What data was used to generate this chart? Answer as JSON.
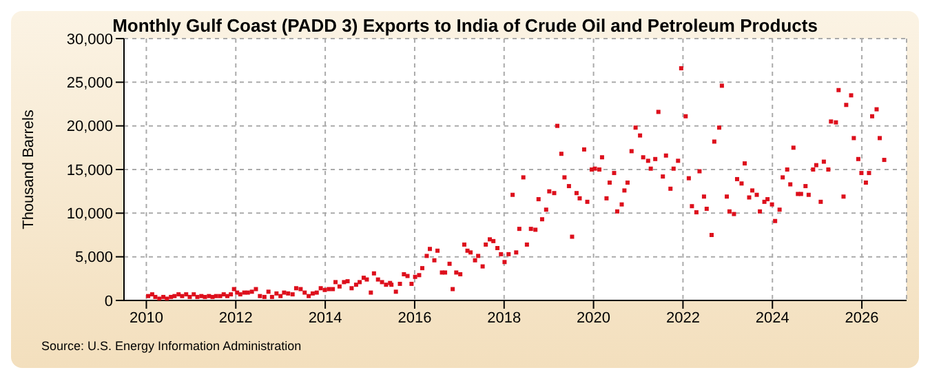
{
  "chart_data": {
    "type": "scatter",
    "title": "Monthly Gulf Coast (PADD 3) Exports to India of Crude Oil and Petroleum Products",
    "ylabel": "Thousand Barrels",
    "annotations": [
      "Source: U.S. Energy Information Administration"
    ],
    "marker": "square",
    "grid": true,
    "xlim": [
      2009.5,
      2027
    ],
    "xticks": [
      2010,
      2012,
      2014,
      2016,
      2018,
      2020,
      2022,
      2024,
      2026
    ],
    "ylim": [
      0,
      30000
    ],
    "yticks": [
      0,
      {
        "value": 5000,
        "label": "5,000"
      },
      {
        "value": 10000,
        "label": "10,000"
      },
      {
        "value": 15000,
        "label": "15,000"
      },
      {
        "value": 20000,
        "label": "20,000"
      },
      {
        "value": 25000,
        "label": "25,000"
      },
      {
        "value": 30000,
        "label": "30,000"
      }
    ],
    "series": [
      {
        "color": "#dd0f1c",
        "x": [
          2010.04,
          2010.13,
          2010.2,
          2010.29,
          2010.38,
          2010.46,
          2010.55,
          2010.63,
          2010.72,
          2010.8,
          2010.89,
          2010.97,
          2011.06,
          2011.14,
          2011.23,
          2011.31,
          2011.4,
          2011.48,
          2011.56,
          2011.65,
          2011.73,
          2011.81,
          2011.89,
          2011.96,
          2012.03,
          2012.1,
          2012.19,
          2012.27,
          2012.36,
          2012.45,
          2012.54,
          2012.64,
          2012.73,
          2012.81,
          2012.91,
          2013,
          2013.08,
          2013.17,
          2013.27,
          2013.35,
          2013.45,
          2013.54,
          2013.63,
          2013.72,
          2013.81,
          2013.9,
          2013.99,
          2014.08,
          2014.17,
          2014.23,
          2014.32,
          2014.42,
          2014.5,
          2014.59,
          2014.69,
          2014.77,
          2014.86,
          2014.93,
          2015.02,
          2015.09,
          2015.18,
          2015.27,
          2015.36,
          2015.45,
          2015.48,
          2015.58,
          2015.67,
          2015.76,
          2015.84,
          2015.93,
          2016.01,
          2016.1,
          2016.17,
          2016.27,
          2016.34,
          2016.44,
          2016.51,
          2016.61,
          2016.68,
          2016.78,
          2016.85,
          2016.93,
          2017.02,
          2017.11,
          2017.18,
          2017.25,
          2017.35,
          2017.42,
          2017.52,
          2017.59,
          2017.68,
          2017.76,
          2017.85,
          2017.93,
          2018.01,
          2018.1,
          2018.19,
          2018.27,
          2018.34,
          2018.43,
          2018.51,
          2018.6,
          2018.7,
          2018.77,
          2018.85,
          2018.94,
          2019.01,
          2019.12,
          2019.19,
          2019.28,
          2019.35,
          2019.45,
          2019.52,
          2019.62,
          2019.69,
          2019.79,
          2019.86,
          2019.96,
          2020.03,
          2020.13,
          2020.19,
          2020.29,
          2020.36,
          2020.46,
          2020.53,
          2020.63,
          2020.69,
          2020.76,
          2020.85,
          2020.94,
          2021.04,
          2021.11,
          2021.22,
          2021.28,
          2021.38,
          2021.45,
          2021.55,
          2021.62,
          2021.72,
          2021.79,
          2021.89,
          2021.96,
          2022.06,
          2022.13,
          2022.2,
          2022.3,
          2022.37,
          2022.47,
          2022.53,
          2022.64,
          2022.7,
          2022.81,
          2022.87,
          2022.98,
          2023.04,
          2023.14,
          2023.21,
          2023.31,
          2023.38,
          2023.48,
          2023.55,
          2023.65,
          2023.72,
          2023.82,
          2023.89,
          2023.99,
          2024.06,
          2024.16,
          2024.23,
          2024.33,
          2024.4,
          2024.47,
          2024.57,
          2024.64,
          2024.74,
          2024.81,
          2024.91,
          2024.98,
          2025.08,
          2025.15,
          2025.25,
          2025.31,
          2025.42,
          2025.48,
          2025.59,
          2025.65,
          2025.76,
          2025.82,
          2025.92,
          2025.99,
          2026.09,
          2026.16,
          2026.23,
          2026.33,
          2026.4,
          2026.5
        ],
        "values": [
          500,
          700,
          400,
          200,
          400,
          200,
          400,
          500,
          700,
          500,
          700,
          400,
          700,
          400,
          500,
          400,
          500,
          400,
          500,
          500,
          700,
          500,
          700,
          1300,
          900,
          700,
          900,
          900,
          1000,
          1300,
          500,
          400,
          1000,
          400,
          800,
          500,
          900,
          800,
          700,
          1400,
          1300,
          900,
          500,
          800,
          900,
          1400,
          1200,
          1300,
          1300,
          2100,
          1600,
          2100,
          2200,
          1400,
          1800,
          2100,
          2600,
          2400,
          900,
          3100,
          2400,
          2100,
          1800,
          2000,
          1800,
          1000,
          1900,
          3000,
          2800,
          1900,
          2700,
          2900,
          3700,
          5100,
          5900,
          4600,
          5700,
          3200,
          3200,
          4200,
          1300,
          3200,
          3000,
          6400,
          5700,
          5500,
          4600,
          5100,
          3900,
          6400,
          7000,
          6800,
          6000,
          5300,
          4400,
          5300,
          12100,
          5500,
          8200,
          14100,
          6400,
          8200,
          8100,
          11600,
          9300,
          10400,
          12500,
          12300,
          20000,
          16800,
          14100,
          13100,
          7300,
          12300,
          11700,
          17300,
          11300,
          15000,
          15100,
          15000,
          16400,
          11700,
          13500,
          14600,
          10200,
          11000,
          12600,
          13500,
          17100,
          19800,
          18900,
          16400,
          16000,
          15100,
          16200,
          21600,
          14200,
          16600,
          12800,
          15100,
          16000,
          26600,
          21100,
          14000,
          10800,
          10100,
          14800,
          11900,
          10500,
          7500,
          18200,
          19800,
          24600,
          11900,
          10200,
          9900,
          13900,
          13400,
          15700,
          11800,
          12600,
          12100,
          10200,
          11300,
          11600,
          11000,
          9100,
          10400,
          14100,
          15000,
          13300,
          17500,
          12200,
          12200,
          13100,
          12100,
          15000,
          15500,
          11300,
          15900,
          15000,
          20500,
          20400,
          24100,
          11900,
          22400,
          23500,
          18600,
          16200,
          14600,
          13500,
          14600,
          21100,
          21900,
          18600,
          16100
        ]
      }
    ]
  }
}
